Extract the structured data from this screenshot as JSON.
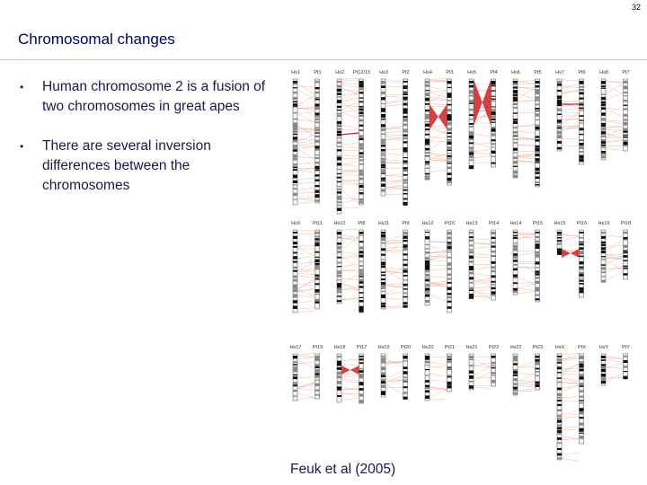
{
  "page_number": "32",
  "title": "Chromosomal changes",
  "bullets": [
    "Human chromosome 2 is a fusion of two chromosomes in great apes",
    "There are several inversion differences between the chromosomes"
  ],
  "figure": {
    "caption": "Feuk et al (2005)",
    "rows": [
      [
        "Hs1",
        "Pt1",
        "Hs2",
        "Pt12/13",
        "Hs3",
        "Pt2",
        "Hs4",
        "Pt3",
        "Hs5",
        "Pt4",
        "Hs6",
        "Pt5",
        "Hs7",
        "Pt6",
        "Hs8",
        "Pt7"
      ],
      [
        "Hs9",
        "Pt11",
        "Hs10",
        "Pt8",
        "Hs11",
        "Pt9",
        "Hs12",
        "Pt10",
        "Hs13",
        "Pt14",
        "Hs14",
        "Pt15",
        "Hs15",
        "Pt16",
        "Hs16",
        "Pt18"
      ],
      [
        "Hs17",
        "Pt19",
        "Hs18",
        "Pt17",
        "Hs19",
        "Pt20",
        "Hs20",
        "Pt21",
        "Hs21",
        "Pt22",
        "Hs22",
        "Pt23",
        "HsX",
        "PtX",
        "HsY",
        "PtY"
      ]
    ],
    "inversion_color": "#cc2222",
    "link_color": "#e8826a"
  }
}
